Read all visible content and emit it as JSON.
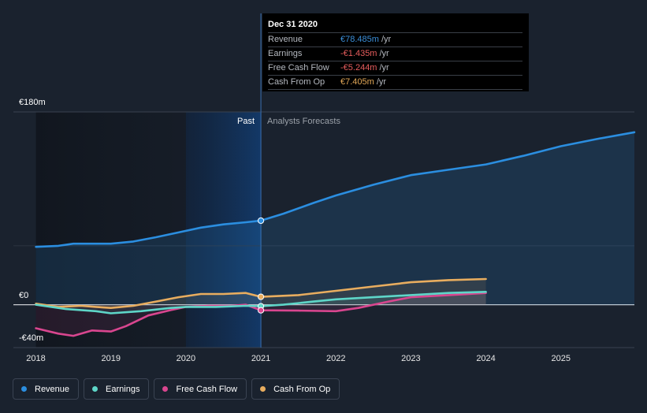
{
  "tooltip": {
    "date": "Dec 31 2020",
    "rows": [
      {
        "name": "Revenue",
        "value": "€78.485m",
        "unit": "/yr",
        "color": "#3b8fd9"
      },
      {
        "name": "Earnings",
        "value": "-€1.435m",
        "unit": "/yr",
        "color": "#e85d5d"
      },
      {
        "name": "Free Cash Flow",
        "value": "-€5.244m",
        "unit": "/yr",
        "color": "#e85d5d"
      },
      {
        "name": "Cash From Op",
        "value": "€7.405m",
        "unit": "/yr",
        "color": "#e3a857"
      }
    ]
  },
  "legend": [
    {
      "label": "Revenue",
      "color": "#2b8ee0"
    },
    {
      "label": "Earnings",
      "color": "#5ed6c8"
    },
    {
      "label": "Free Cash Flow",
      "color": "#d9468f"
    },
    {
      "label": "Cash From Op",
      "color": "#e8ad5f"
    }
  ],
  "chart_data": {
    "type": "line",
    "title": "",
    "xlabel": "",
    "ylabel": "",
    "ylim": [
      -40,
      180
    ],
    "xlim": [
      2017.7,
      2025.98
    ],
    "y_ticks": [
      {
        "value": 180,
        "label": "€180m"
      },
      {
        "value": 0,
        "label": "€0"
      },
      {
        "value": -40,
        "label": "-€40m"
      }
    ],
    "x_ticks": [
      {
        "value": 2018,
        "label": "2018"
      },
      {
        "value": 2019,
        "label": "2019"
      },
      {
        "value": 2020,
        "label": "2020"
      },
      {
        "value": 2021,
        "label": "2021"
      },
      {
        "value": 2022,
        "label": "2022"
      },
      {
        "value": 2023,
        "label": "2023"
      },
      {
        "value": 2024,
        "label": "2024"
      },
      {
        "value": 2025,
        "label": "2025"
      }
    ],
    "divider_x": 2021,
    "past_label": "Past",
    "forecast_label": "Analysts Forecasts",
    "highlight_range": [
      2020,
      2021
    ],
    "series": [
      {
        "name": "Revenue",
        "color": "#2b8ee0",
        "points": [
          [
            2018,
            54
          ],
          [
            2018.3,
            55
          ],
          [
            2018.5,
            57
          ],
          [
            2018.75,
            57
          ],
          [
            2019,
            57
          ],
          [
            2019.3,
            59
          ],
          [
            2019.6,
            63
          ],
          [
            2020,
            69
          ],
          [
            2020.2,
            72
          ],
          [
            2020.5,
            75
          ],
          [
            2020.8,
            77
          ],
          [
            2021,
            78.5
          ],
          [
            2021.3,
            85
          ],
          [
            2021.7,
            95
          ],
          [
            2022,
            102
          ],
          [
            2022.5,
            112
          ],
          [
            2023,
            121
          ],
          [
            2023.5,
            126
          ],
          [
            2024,
            131
          ],
          [
            2024.5,
            139
          ],
          [
            2025,
            148
          ],
          [
            2025.5,
            155
          ],
          [
            2025.98,
            161
          ]
        ],
        "marker": [
          2021,
          78.5
        ]
      },
      {
        "name": "Earnings",
        "color": "#5ed6c8",
        "points": [
          [
            2018,
            0
          ],
          [
            2018.4,
            -4
          ],
          [
            2018.8,
            -6
          ],
          [
            2019,
            -8
          ],
          [
            2019.4,
            -6
          ],
          [
            2019.8,
            -3
          ],
          [
            2020,
            -2
          ],
          [
            2020.4,
            -2
          ],
          [
            2020.8,
            -1
          ],
          [
            2021,
            -1.4
          ],
          [
            2021.3,
            0
          ],
          [
            2021.7,
            3
          ],
          [
            2022,
            5
          ],
          [
            2022.5,
            7
          ],
          [
            2023,
            9
          ],
          [
            2023.5,
            11
          ],
          [
            2024,
            12
          ]
        ],
        "marker": [
          2021,
          -1.4
        ]
      },
      {
        "name": "Free Cash Flow",
        "color": "#d9468f",
        "points": [
          [
            2018,
            -22
          ],
          [
            2018.3,
            -27
          ],
          [
            2018.5,
            -29
          ],
          [
            2018.75,
            -24
          ],
          [
            2019,
            -25
          ],
          [
            2019.2,
            -20
          ],
          [
            2019.5,
            -10
          ],
          [
            2019.8,
            -5
          ],
          [
            2020,
            -2
          ],
          [
            2020.3,
            -1
          ],
          [
            2020.6,
            -1
          ],
          [
            2020.8,
            0
          ],
          [
            2021,
            -5.2
          ],
          [
            2021.5,
            -5.5
          ],
          [
            2022,
            -6
          ],
          [
            2022.3,
            -3
          ],
          [
            2022.7,
            3
          ],
          [
            2023,
            7
          ],
          [
            2023.5,
            9
          ],
          [
            2024,
            11
          ]
        ],
        "marker": [
          2021,
          -5.2
        ]
      },
      {
        "name": "Cash From Op",
        "color": "#e8ad5f",
        "points": [
          [
            2018,
            1
          ],
          [
            2018.3,
            -2
          ],
          [
            2018.6,
            -1
          ],
          [
            2018.8,
            -2
          ],
          [
            2019,
            -3
          ],
          [
            2019.3,
            -1
          ],
          [
            2019.6,
            3
          ],
          [
            2019.9,
            7
          ],
          [
            2020.2,
            10
          ],
          [
            2020.5,
            10
          ],
          [
            2020.8,
            11
          ],
          [
            2021,
            7.4
          ],
          [
            2021.5,
            9
          ],
          [
            2022,
            13
          ],
          [
            2022.5,
            17
          ],
          [
            2023,
            21
          ],
          [
            2023.5,
            23
          ],
          [
            2024,
            24
          ]
        ],
        "marker": [
          2021,
          7.4
        ]
      }
    ]
  }
}
